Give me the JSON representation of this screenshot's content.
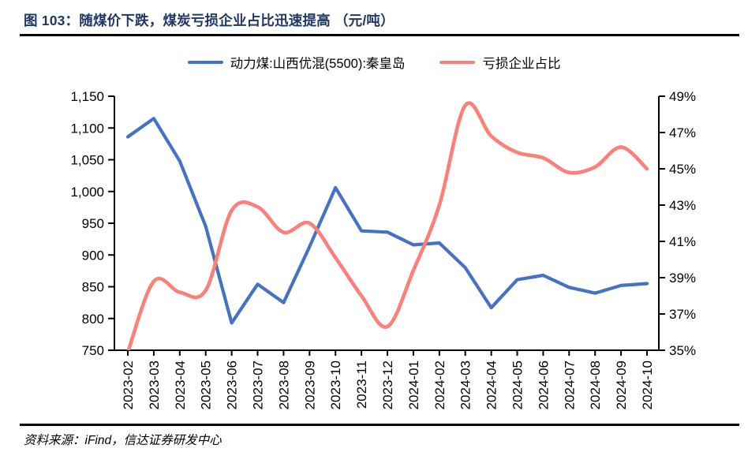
{
  "header": {
    "title": "图 103：随煤价下跌，煤炭亏损企业占比迅速提高 （元/吨）"
  },
  "legend": [
    {
      "label": "动力煤:山西优混(5500):秦皇岛",
      "color": "#4472C4"
    },
    {
      "label": "亏损企业占比",
      "color": "#FA8078"
    }
  ],
  "footer": {
    "source": "资料来源：iFind，信达证券研发中心"
  },
  "chart_data": {
    "type": "line",
    "title": "图 103：随煤价下跌，煤炭亏损企业占比迅速提高 （元/吨）",
    "grid": false,
    "legend_position": "top",
    "categories": [
      "2023-02",
      "2023-03",
      "2023-04",
      "2023-05",
      "2023-06",
      "2023-07",
      "2023-08",
      "2023-09",
      "2023-10",
      "2023-11",
      "2023-12",
      "2024-01",
      "2024-02",
      "2024-03",
      "2024-04",
      "2024-05",
      "2024-06",
      "2024-07",
      "2024-08",
      "2024-09",
      "2024-10"
    ],
    "series": [
      {
        "id": "price-line",
        "name": "动力煤:山西优混(5500):秦皇岛",
        "axis": "left",
        "unit": "元/吨",
        "color": "#4472C4",
        "smooth": false,
        "values": [
          1086,
          1115,
          1048,
          945,
          793,
          854,
          825,
          913,
          1006,
          938,
          936,
          916,
          919,
          880,
          817,
          861,
          868,
          849,
          840,
          852,
          855
        ]
      },
      {
        "id": "loss-ratio-line",
        "name": "亏损企业占比",
        "axis": "right",
        "unit": "%",
        "color": "#FA8078",
        "smooth": true,
        "values": [
          34.9,
          38.8,
          38.2,
          38.3,
          42.7,
          42.9,
          41.5,
          42.0,
          40.1,
          38.0,
          36.3,
          39.4,
          43.0,
          48.5,
          46.8,
          45.9,
          45.6,
          44.8,
          45.1,
          46.2,
          45.0
        ]
      }
    ],
    "left_axis": {
      "min": 750,
      "max": 1150,
      "step": 50,
      "tick_labels": [
        "1,150",
        "1,100",
        "1,050",
        "1,000",
        "950",
        "900",
        "850",
        "800",
        "750"
      ]
    },
    "right_axis": {
      "min": 35,
      "max": 49,
      "step": 2,
      "tick_labels": [
        "49%",
        "47%",
        "45%",
        "43%",
        "41%",
        "39%",
        "37%",
        "35%"
      ]
    },
    "axis_color": "#000000",
    "tick_label_color": "#000000"
  }
}
